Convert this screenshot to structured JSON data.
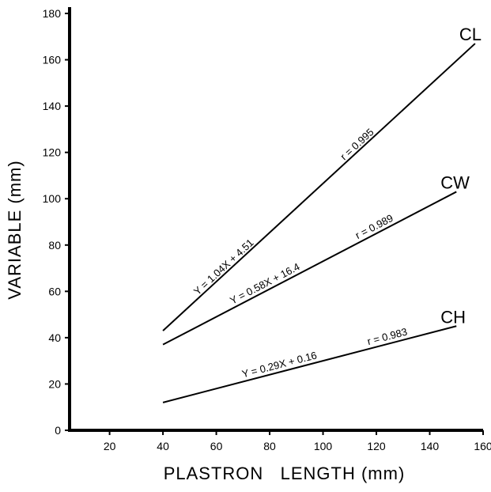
{
  "chart_data": {
    "type": "line",
    "title": "",
    "xlabel": "PLASTRON   LENGTH (mm)",
    "ylabel": "VARIABLE (mm)",
    "xlim": [
      5,
      160
    ],
    "ylim": [
      0,
      180
    ],
    "x_ticks": [
      20,
      40,
      60,
      80,
      100,
      120,
      140,
      160
    ],
    "y_ticks": [
      0,
      20,
      40,
      60,
      80,
      100,
      120,
      140,
      160,
      180
    ],
    "grid": false,
    "series": [
      {
        "name": "CL",
        "x": [
          40,
          157
        ],
        "y": [
          43,
          167
        ],
        "equation": "Y = 1.04X + 4.51",
        "r_text": "r = 0.995",
        "eq_at_x": 53,
        "eq_at_y_offset": 4,
        "r_at_x": 108
      },
      {
        "name": "CW",
        "x": [
          40,
          150
        ],
        "y": [
          37,
          103
        ],
        "equation": "Y = 0.58X + 16.4",
        "r_text": "r = 0.989",
        "eq_at_x": 66,
        "eq_at_y_offset": 5,
        "r_at_x": 113
      },
      {
        "name": "CH",
        "x": [
          40,
          150
        ],
        "y": [
          12,
          45
        ],
        "equation": "Y = 0.29X + 0.16",
        "r_text": "r = 0.983",
        "eq_at_x": 70,
        "eq_at_y_offset": 5,
        "r_at_x": 117
      }
    ]
  }
}
